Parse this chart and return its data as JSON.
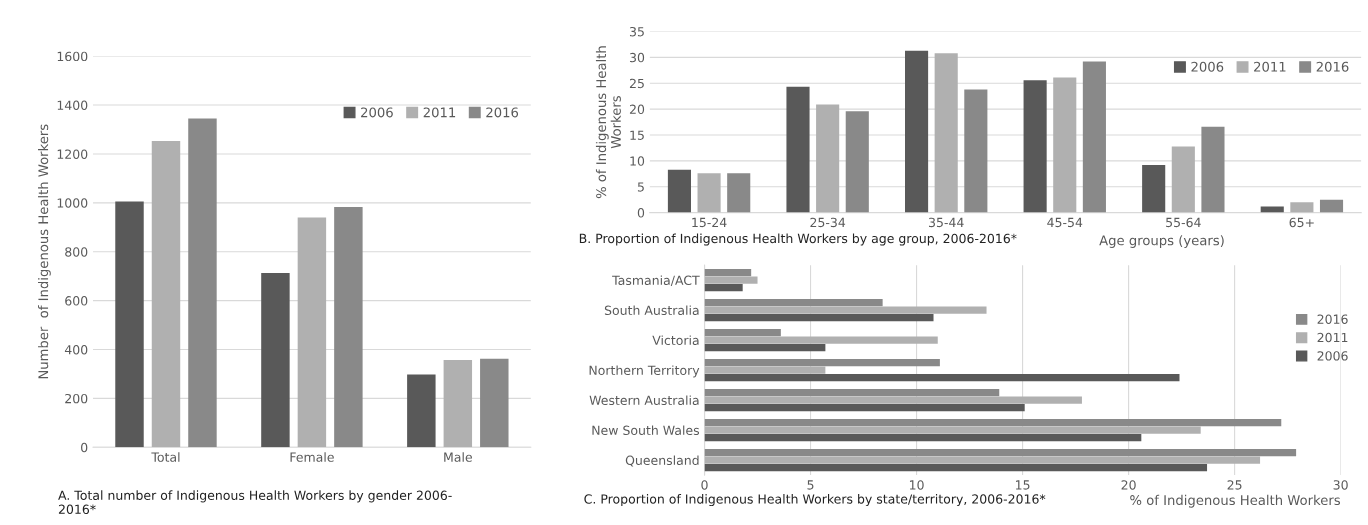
{
  "chart_data": [
    {
      "type": "bar",
      "ylabel": "Number  of Indigenous Health Workers",
      "categories": [
        "Total",
        "Female",
        "Male"
      ],
      "series": [
        {
          "name": "2006",
          "color": "#595959",
          "values": [
            1005,
            713,
            298
          ]
        },
        {
          "name": "2011",
          "color": "#b0b0b0",
          "values": [
            1253,
            940,
            357
          ]
        },
        {
          "name": "2016",
          "color": "#898989",
          "values": [
            1345,
            983,
            362
          ]
        }
      ],
      "ylim": [
        0,
        1600
      ],
      "yticks": [
        0,
        200,
        400,
        600,
        800,
        1000,
        1200,
        1400,
        1600
      ],
      "grid": "y",
      "legend": "top right",
      "annotations": [
        "A. Total number of Indigenous Health Workers by gender 2006-\n2016*"
      ]
    },
    {
      "type": "bar",
      "ylabel": "% of Indigenous Health\nWorkers",
      "xlabel": "Age groups (years)",
      "categories": [
        "15-24",
        "25-34",
        "35-44",
        "45-54",
        "55-64",
        "65+"
      ],
      "series": [
        {
          "name": "2006",
          "color": "#595959",
          "values": [
            8.3,
            24.3,
            31.3,
            25.6,
            9.2,
            1.2
          ]
        },
        {
          "name": "2011",
          "color": "#b0b0b0",
          "values": [
            7.6,
            20.9,
            30.8,
            26.1,
            12.8,
            2.0
          ]
        },
        {
          "name": "2016",
          "color": "#898989",
          "values": [
            7.6,
            19.6,
            23.8,
            29.2,
            16.6,
            2.5
          ]
        }
      ],
      "ylim": [
        0,
        35
      ],
      "yticks": [
        0,
        5,
        10,
        15,
        20,
        25,
        30,
        35
      ],
      "grid": "y",
      "legend": "top right",
      "annotations": [
        "B. Proportion of Indigenous Health Workers by age group, 2006-2016*"
      ]
    },
    {
      "type": "bar",
      "orientation": "horizontal",
      "xlabel": "% of Indigenous Health Workers",
      "categories": [
        "Tasmania/ACT",
        "South Australia",
        "Victoria",
        "Northern Territory",
        "Western Australia",
        "New South Wales",
        "Queensland"
      ],
      "series": [
        {
          "name": "2016",
          "color": "#898989",
          "values": [
            2.2,
            8.4,
            3.6,
            11.1,
            13.9,
            27.2,
            27.9
          ]
        },
        {
          "name": "2011",
          "color": "#b0b0b0",
          "values": [
            2.5,
            13.3,
            11.0,
            5.7,
            17.8,
            23.4,
            26.2
          ]
        },
        {
          "name": "2006",
          "color": "#595959",
          "values": [
            1.8,
            10.8,
            5.7,
            22.4,
            15.1,
            20.6,
            23.7
          ]
        }
      ],
      "xlim": [
        0,
        30
      ],
      "xticks": [
        0,
        5,
        10,
        15,
        20,
        25,
        30
      ],
      "grid": "x",
      "legend": "right",
      "annotations": [
        "C. Proportion of Indigenous Health Workers by state/territory, 2006-2016*"
      ]
    }
  ]
}
